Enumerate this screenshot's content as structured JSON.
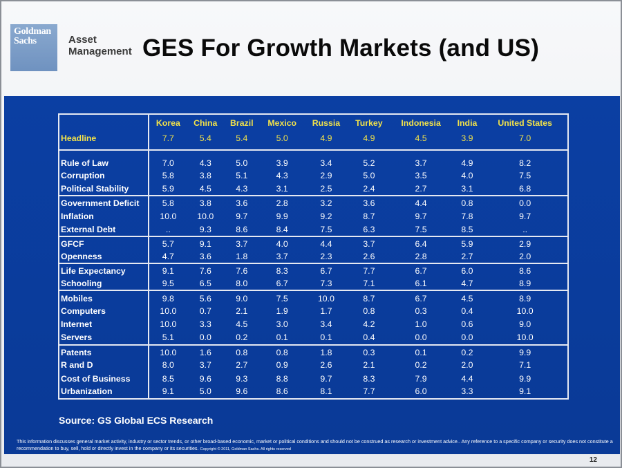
{
  "logo": {
    "line1": "Goldman",
    "line2": "Sachs"
  },
  "header": {
    "brand_line1": "Asset",
    "brand_line2": "Management",
    "title": "GES For Growth Markets (and US)"
  },
  "table": {
    "columns": [
      "Korea",
      "China",
      "Brazil",
      "Mexico",
      "Russia",
      "Turkey",
      "Indonesia",
      "India",
      "United States"
    ],
    "headline": {
      "label": "Headline",
      "values": [
        "7.7",
        "5.4",
        "5.4",
        "5.0",
        "4.9",
        "4.9",
        "4.5",
        "3.9",
        "7.0"
      ]
    },
    "rows": [
      {
        "label": "Rule of Law",
        "values": [
          "7.0",
          "4.3",
          "5.0",
          "3.9",
          "3.4",
          "5.2",
          "3.7",
          "4.9",
          "8.2"
        ]
      },
      {
        "label": "Corruption",
        "values": [
          "5.8",
          "3.8",
          "5.1",
          "4.3",
          "2.9",
          "5.0",
          "3.5",
          "4.0",
          "7.5"
        ]
      },
      {
        "label": "Political Stability",
        "values": [
          "5.9",
          "4.5",
          "4.3",
          "3.1",
          "2.5",
          "2.4",
          "2.7",
          "3.1",
          "6.8"
        ]
      },
      {
        "label": "Government Deficit",
        "values": [
          "5.8",
          "3.8",
          "3.6",
          "2.8",
          "3.2",
          "3.6",
          "4.4",
          "0.8",
          "0.0"
        ]
      },
      {
        "label": "Inflation",
        "values": [
          "10.0",
          "10.0",
          "9.7",
          "9.9",
          "9.2",
          "8.7",
          "9.7",
          "7.8",
          "9.7"
        ]
      },
      {
        "label": "External Debt",
        "values": [
          "..",
          "9.3",
          "8.6",
          "8.4",
          "7.5",
          "6.3",
          "7.5",
          "8.5",
          ".."
        ]
      },
      {
        "label": "GFCF",
        "values": [
          "5.7",
          "9.1",
          "3.7",
          "4.0",
          "4.4",
          "3.7",
          "6.4",
          "5.9",
          "2.9"
        ]
      },
      {
        "label": "Openness",
        "values": [
          "4.7",
          "3.6",
          "1.8",
          "3.7",
          "2.3",
          "2.6",
          "2.8",
          "2.7",
          "2.0"
        ]
      },
      {
        "label": "Life Expectancy",
        "values": [
          "9.1",
          "7.6",
          "7.6",
          "8.3",
          "6.7",
          "7.7",
          "6.7",
          "6.0",
          "8.6"
        ]
      },
      {
        "label": "Schooling",
        "values": [
          "9.5",
          "6.5",
          "8.0",
          "6.7",
          "7.3",
          "7.1",
          "6.1",
          "4.7",
          "8.9"
        ]
      },
      {
        "label": "Mobiles",
        "values": [
          "9.8",
          "5.6",
          "9.0",
          "7.5",
          "10.0",
          "8.7",
          "6.7",
          "4.5",
          "8.9"
        ]
      },
      {
        "label": "Computers",
        "values": [
          "10.0",
          "0.7",
          "2.1",
          "1.9",
          "1.7",
          "0.8",
          "0.3",
          "0.4",
          "10.0"
        ]
      },
      {
        "label": "Internet",
        "values": [
          "10.0",
          "3.3",
          "4.5",
          "3.0",
          "3.4",
          "4.2",
          "1.0",
          "0.6",
          "9.0"
        ]
      },
      {
        "label": "Servers",
        "values": [
          "5.1",
          "0.0",
          "0.2",
          "0.1",
          "0.1",
          "0.4",
          "0.0",
          "0.0",
          "10.0"
        ]
      },
      {
        "label": "Patents",
        "values": [
          "10.0",
          "1.6",
          "0.8",
          "0.8",
          "1.8",
          "0.3",
          "0.1",
          "0.2",
          "9.9"
        ]
      },
      {
        "label": "R and D",
        "values": [
          "8.0",
          "3.7",
          "2.7",
          "0.9",
          "2.6",
          "2.1",
          "0.2",
          "2.0",
          "7.1"
        ]
      },
      {
        "label": "Cost of Business",
        "values": [
          "8.5",
          "9.6",
          "9.3",
          "8.8",
          "9.7",
          "8.3",
          "7.9",
          "4.4",
          "9.9"
        ]
      },
      {
        "label": "Urbanization",
        "values": [
          "9.1",
          "5.0",
          "9.6",
          "8.6",
          "8.1",
          "7.7",
          "6.0",
          "3.3",
          "9.1"
        ]
      }
    ]
  },
  "source": "Source: GS Global ECS Research",
  "disclaimer": {
    "text": "This information discusses general market activity, industry or sector trends, or other broad-based economic, market or political conditions and should not be construed as research or investment advice.. Any reference to a specific company or security does not constitute a recommendation to buy, sell, hold or directly invest in the company or its securities.",
    "copyright": "Copyright © 2011, Goldman Sachs. All rights reserved"
  },
  "page_number": "12",
  "colors": {
    "panel_blue": "#0a3a97",
    "header_yellow": "#f2e24a"
  }
}
